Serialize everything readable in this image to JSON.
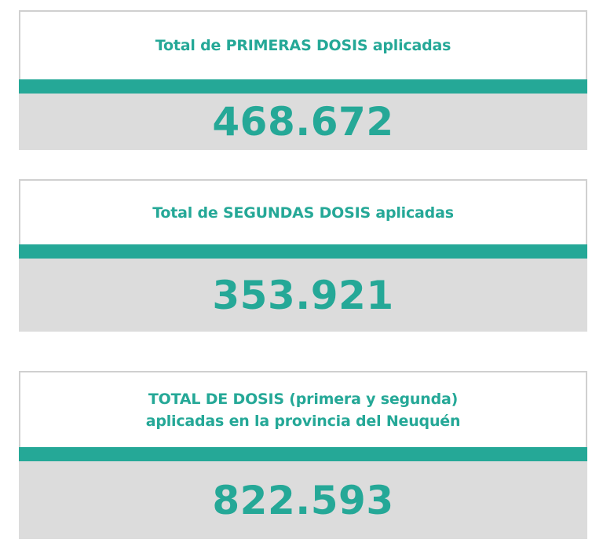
{
  "accent_color": "#25a897",
  "cards": [
    {
      "title_lines": [
        "Total de PRIMERAS DOSIS aplicadas"
      ],
      "value": "468.672"
    },
    {
      "title_lines": [
        "Total de SEGUNDAS DOSIS aplicadas"
      ],
      "value": "353.921"
    },
    {
      "title_lines": [
        "TOTAL DE DOSIS (primera y segunda)",
        "aplicadas en la provincia del Neuquén"
      ],
      "value": "822.593"
    }
  ]
}
